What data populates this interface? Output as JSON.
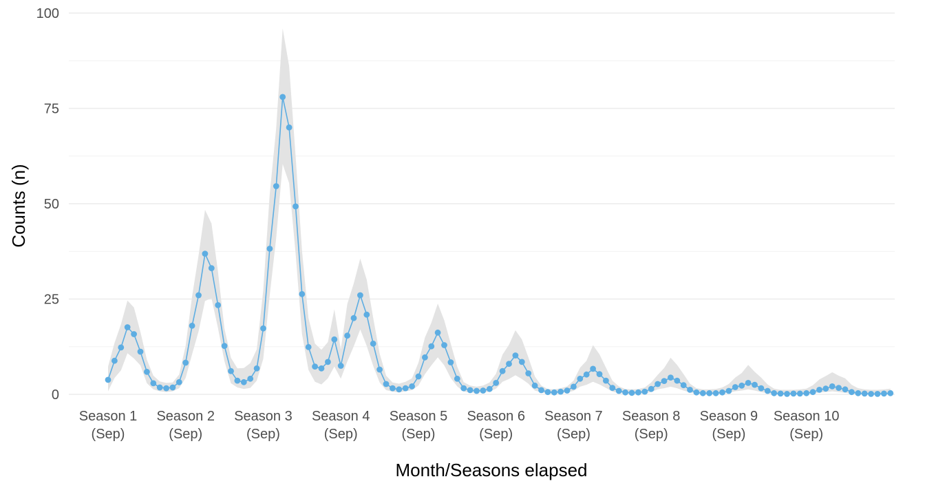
{
  "chart_data": {
    "type": "line",
    "title": "",
    "xlabel": "Month/Seasons elapsed",
    "ylabel": "Counts (n)",
    "ylim": [
      0,
      100
    ],
    "y_ticks": [
      0,
      25,
      50,
      75,
      100
    ],
    "grid": true,
    "legend": "none",
    "colors": {
      "line": "#5dade2",
      "ribbon": "#e3e3e3",
      "grid": "#ebebeb"
    },
    "x_tick_labels": [
      {
        "x": 1,
        "line1": "Season 1",
        "line2": "(Sep)"
      },
      {
        "x": 13,
        "line1": "Season 2",
        "line2": "(Sep)"
      },
      {
        "x": 25,
        "line1": "Season 3",
        "line2": "(Sep)"
      },
      {
        "x": 37,
        "line1": "Season 4",
        "line2": "(Sep)"
      },
      {
        "x": 49,
        "line1": "Season 5",
        "line2": "(Sep)"
      },
      {
        "x": 61,
        "line1": "Season 6",
        "line2": "(Sep)"
      },
      {
        "x": 73,
        "line1": "Season 7",
        "line2": "(Sep)"
      },
      {
        "x": 85,
        "line1": "Season 8",
        "line2": "(Sep)"
      },
      {
        "x": 97,
        "line1": "Season 9",
        "line2": "(Sep)"
      },
      {
        "x": 109,
        "line1": "Season 10",
        "line2": "(Sep)"
      }
    ],
    "series": [
      {
        "x": [
          1,
          2,
          3,
          4,
          5,
          6,
          7,
          8,
          9,
          10,
          11,
          12,
          13,
          14,
          15,
          16,
          17,
          18,
          19,
          20,
          21,
          22,
          23,
          24,
          25,
          26,
          27,
          28,
          29,
          30,
          31,
          32,
          33,
          34,
          35,
          36,
          37,
          38,
          39,
          40,
          41,
          42,
          43,
          44,
          45,
          46,
          47,
          48,
          49,
          50,
          51,
          52,
          53,
          54,
          55,
          56,
          57,
          58,
          59,
          60,
          61,
          62,
          63,
          64,
          65,
          66,
          67,
          68,
          69,
          70,
          71,
          72,
          73,
          74,
          75,
          76,
          77,
          78,
          79,
          80,
          81,
          82,
          83,
          84,
          85,
          86,
          87,
          88,
          89,
          90,
          91,
          92,
          93,
          94,
          95,
          96,
          97,
          98,
          99,
          100,
          101,
          102,
          103,
          104,
          105,
          106,
          107,
          108,
          109,
          110,
          111,
          112,
          113,
          114,
          115,
          116,
          117,
          118,
          119,
          120,
          121,
          122
        ],
        "values": [
          3.8,
          8.8,
          12.3,
          17.6,
          15.8,
          11.2,
          5.9,
          2.9,
          1.8,
          1.6,
          1.8,
          3.2,
          8.3,
          18,
          26,
          36.9,
          33.1,
          23.4,
          12.7,
          6.1,
          3.6,
          3.2,
          4.1,
          6.8,
          17.3,
          38.2,
          54.6,
          78,
          70,
          49.3,
          26.3,
          12.4,
          7.3,
          6.8,
          8.5,
          14.4,
          7.5,
          15.4,
          20,
          26,
          20.9,
          13.3,
          6.5,
          2.7,
          1.6,
          1.3,
          1.6,
          2.1,
          4.7,
          9.7,
          12.6,
          16.2,
          12.9,
          8.4,
          4.1,
          1.6,
          1.1,
          0.9,
          1.0,
          1.4,
          3.0,
          6.1,
          8.0,
          10.2,
          8.5,
          5.5,
          2.3,
          1.1,
          0.6,
          0.5,
          0.7,
          1.0,
          2.0,
          4.1,
          5.2,
          6.7,
          5.3,
          3.6,
          1.7,
          0.9,
          0.5,
          0.4,
          0.5,
          0.7,
          1.4,
          2.7,
          3.5,
          4.4,
          3.6,
          2.4,
          1.2,
          0.5,
          0.3,
          0.3,
          0.3,
          0.5,
          0.9,
          1.9,
          2.3,
          3.0,
          2.5,
          1.6,
          0.9,
          0.3,
          0.2,
          0.1,
          0.2,
          0.2,
          0.3,
          0.6,
          1.2,
          1.5,
          2.1,
          1.7,
          1.3,
          0.6,
          0.3,
          0.2,
          0.1,
          0.1,
          0.2,
          0.3
        ],
        "lower": [
          0.8,
          4.3,
          6.3,
          10.8,
          9.4,
          7.6,
          2.9,
          1.3,
          0.8,
          0.6,
          0.8,
          1.6,
          4.3,
          10.5,
          16.5,
          24.5,
          25.2,
          17.4,
          8.7,
          2.9,
          1.8,
          1.4,
          1.7,
          3.6,
          9.3,
          26,
          41,
          60.4,
          55.4,
          37,
          15.8,
          6.4,
          3.3,
          2.6,
          4.2,
          7.3,
          4.1,
          8.6,
          12.6,
          17,
          12.7,
          7.5,
          3.1,
          1.1,
          0.7,
          0.5,
          0.8,
          1.1,
          2.3,
          5.3,
          7.6,
          9.7,
          7.6,
          4.3,
          2.1,
          0.7,
          0.5,
          0.4,
          0.5,
          0.7,
          1.5,
          3.3,
          4.0,
          5.0,
          4.0,
          2.8,
          1.0,
          0.5,
          0.2,
          0.2,
          0.3,
          0.5,
          0.9,
          2.0,
          2.5,
          3.3,
          2.6,
          1.7,
          0.7,
          0.3,
          0.2,
          0.1,
          0.2,
          0.3,
          0.6,
          1.3,
          1.6,
          2.0,
          1.6,
          1.0,
          0.5,
          0.2,
          0.1,
          0.1,
          0.1,
          0.2,
          0.4,
          0.8,
          1.0,
          1.3,
          1.0,
          0.6,
          0.3,
          0.1,
          0.0,
          0.0,
          0.0,
          0.0,
          0.1,
          0.2,
          0.5,
          0.6,
          0.8,
          0.6,
          0.4,
          0.2,
          0.1,
          0.0,
          0.0,
          0.0,
          0.0,
          0.1
        ],
        "upper": [
          7.3,
          13.5,
          18.4,
          24.6,
          22.8,
          16.4,
          9.1,
          4.9,
          3.4,
          3.0,
          3.1,
          5.2,
          12.7,
          25.7,
          36.4,
          48.4,
          44.8,
          32.2,
          17.3,
          9.6,
          6.8,
          6.9,
          8.2,
          11.8,
          27.3,
          52.5,
          69.8,
          96,
          86.1,
          62.5,
          37.7,
          20,
          13.3,
          11.7,
          13.7,
          22.3,
          11.8,
          23.7,
          29.1,
          35.6,
          30.1,
          20.1,
          10.7,
          4.9,
          3.1,
          2.8,
          3.3,
          4.2,
          8.3,
          14.9,
          18.8,
          23.8,
          19.4,
          13.3,
          7.3,
          3.2,
          2.3,
          2.0,
          2.3,
          3.1,
          5.4,
          10.4,
          13.0,
          16.8,
          14.4,
          9.7,
          4.7,
          2.3,
          1.4,
          1.3,
          1.6,
          2.1,
          3.6,
          7.0,
          8.8,
          12.9,
          10.5,
          7.0,
          3.6,
          2.1,
          1.4,
          1.3,
          1.4,
          1.8,
          3.1,
          5.1,
          6.9,
          9.6,
          7.7,
          5.3,
          2.8,
          1.6,
          1.3,
          1.3,
          1.4,
          1.8,
          2.7,
          4.4,
          5.6,
          7.7,
          5.9,
          4.4,
          2.6,
          1.5,
          1.2,
          1.2,
          1.2,
          1.3,
          1.5,
          2.4,
          3.9,
          4.8,
          5.8,
          4.9,
          4.2,
          2.5,
          1.6,
          1.3,
          1.2,
          1.2,
          1.3,
          1.5
        ]
      }
    ]
  }
}
